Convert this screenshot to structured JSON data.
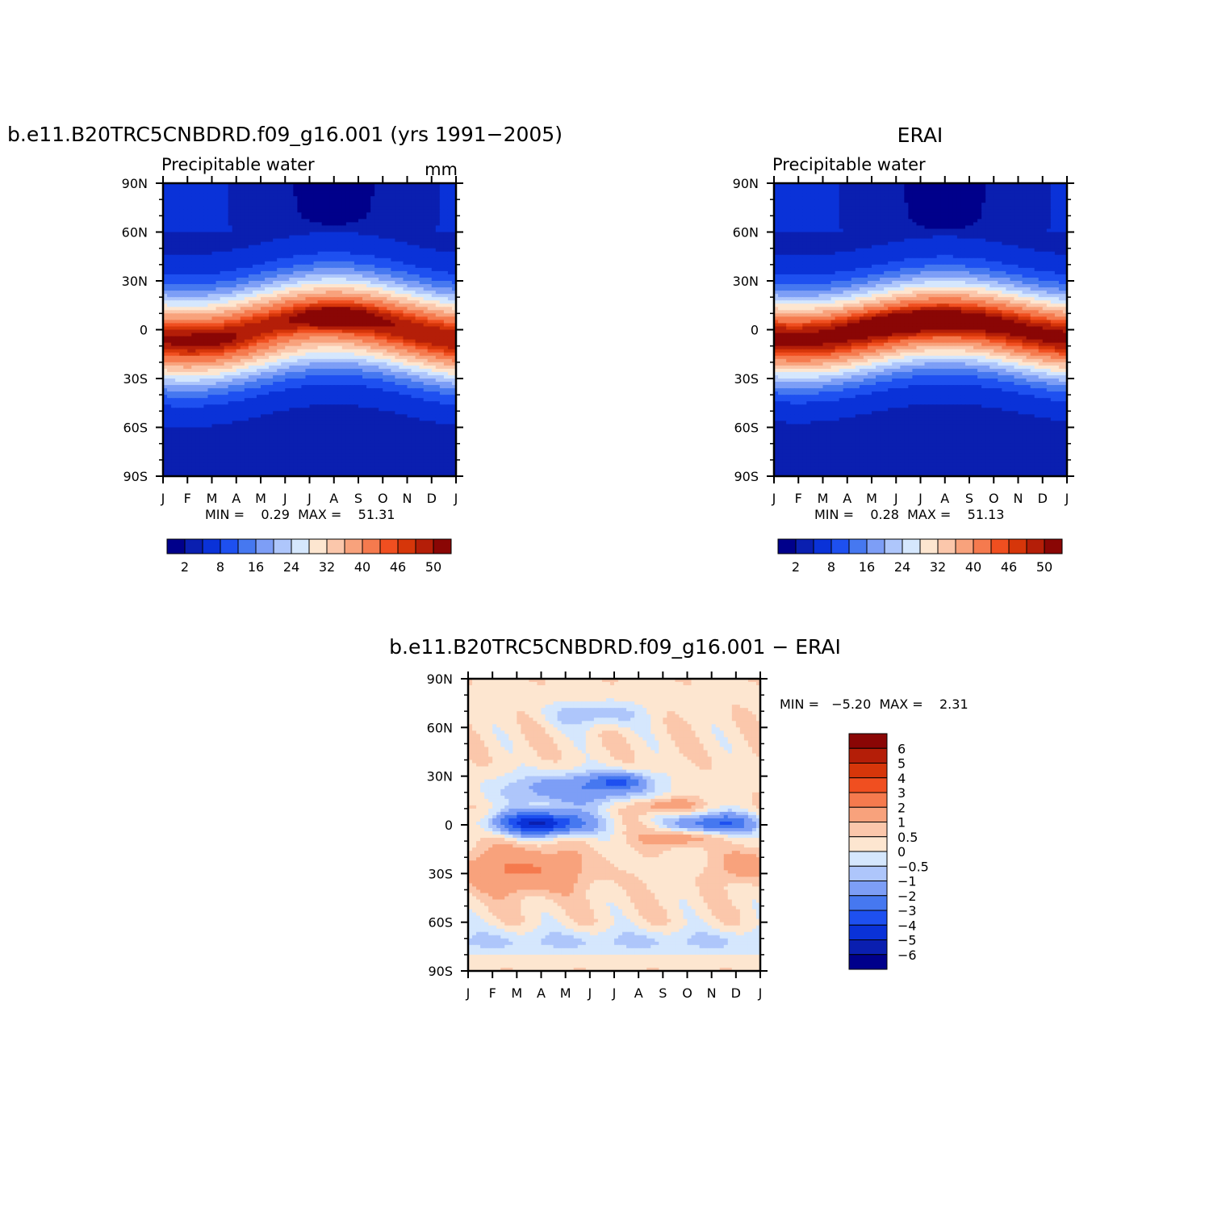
{
  "chart_data": [
    {
      "type": "heatmap",
      "title": "b.e11.B20TRC5CNBDRD.f09_g16.001 (yrs 1991-2005)",
      "subtitle_left": "Precipitable water",
      "subtitle_right": "mm",
      "x_ticks": [
        "J",
        "F",
        "M",
        "A",
        "M",
        "J",
        "J",
        "A",
        "S",
        "O",
        "N",
        "D",
        "J"
      ],
      "y_ticks": [
        "90N",
        "60N",
        "30N",
        "0",
        "30S",
        "60S",
        "90S"
      ],
      "ylim": [
        -90,
        90
      ],
      "stats_text": "MIN =    0.29  MAX =    51.31",
      "colorbar": {
        "orientation": "horizontal",
        "labels": [
          "2",
          "8",
          "16",
          "24",
          "32",
          "40",
          "46",
          "50"
        ],
        "levels": [
          2,
          4,
          8,
          12,
          16,
          20,
          24,
          28,
          32,
          36,
          40,
          44,
          46,
          48,
          50
        ]
      },
      "peak": {
        "month": 7.2,
        "lat": 8,
        "value": 51.31
      },
      "min": 0.29
    },
    {
      "type": "heatmap",
      "title": "ERAI",
      "subtitle_left": "Precipitable water",
      "subtitle_right": "",
      "x_ticks": [
        "J",
        "F",
        "M",
        "A",
        "M",
        "J",
        "J",
        "A",
        "S",
        "O",
        "N",
        "D",
        "J"
      ],
      "y_ticks": [
        "90N",
        "60N",
        "30N",
        "0",
        "30S",
        "60S",
        "90S"
      ],
      "ylim": [
        -90,
        90
      ],
      "stats_text": "MIN =    0.28  MAX =    51.13",
      "colorbar": {
        "orientation": "horizontal",
        "labels": [
          "2",
          "8",
          "16",
          "24",
          "32",
          "40",
          "46",
          "50"
        ],
        "levels": [
          2,
          4,
          8,
          12,
          16,
          20,
          24,
          28,
          32,
          36,
          40,
          44,
          46,
          48,
          50
        ]
      },
      "peak": {
        "month": 5.5,
        "lat": 5,
        "value": 51.13
      },
      "min": 0.28
    },
    {
      "type": "heatmap",
      "title": "b.e11.B20TRC5CNBDRD.f09_g16.001 - ERAI",
      "x_ticks": [
        "J",
        "F",
        "M",
        "A",
        "M",
        "J",
        "J",
        "A",
        "S",
        "O",
        "N",
        "D",
        "J"
      ],
      "y_ticks": [
        "90N",
        "60N",
        "30N",
        "0",
        "30S",
        "60S",
        "90S"
      ],
      "ylim": [
        -90,
        90
      ],
      "stats_text": "MIN =   -5.20  MAX =    2.31",
      "colorbar": {
        "orientation": "vertical",
        "labels": [
          "6",
          "5",
          "4",
          "3",
          "2",
          "1",
          "0.5",
          "0",
          "-0.5",
          "-1",
          "-2",
          "-3",
          "-4",
          "-5",
          "-6"
        ],
        "levels": [
          -6,
          -5,
          -4,
          -3,
          -2,
          -1,
          -0.5,
          0,
          0.5,
          1,
          2,
          3,
          4,
          5,
          6
        ]
      },
      "min": -5.2,
      "max": 2.31
    }
  ],
  "colors": {
    "precip_palette": [
      "#00008b",
      "#0a1fb0",
      "#0a32d8",
      "#1e50f0",
      "#4678f0",
      "#7d9ef6",
      "#aec6fb",
      "#d5e7fd",
      "#fde6d0",
      "#fbc7ab",
      "#f8a27c",
      "#f57a4e",
      "#f04f20",
      "#d6360a",
      "#b41e08",
      "#8a0605"
    ],
    "diff_palette": [
      "#00008b",
      "#0a1fb0",
      "#0a32d8",
      "#1e50f0",
      "#4678f0",
      "#7d9ef6",
      "#aec6fb",
      "#d5e7fd",
      "#fde6d0",
      "#fbc7ab",
      "#f8a27c",
      "#f57a4e",
      "#f04f20",
      "#d6360a",
      "#b41e08",
      "#8a0605"
    ]
  }
}
